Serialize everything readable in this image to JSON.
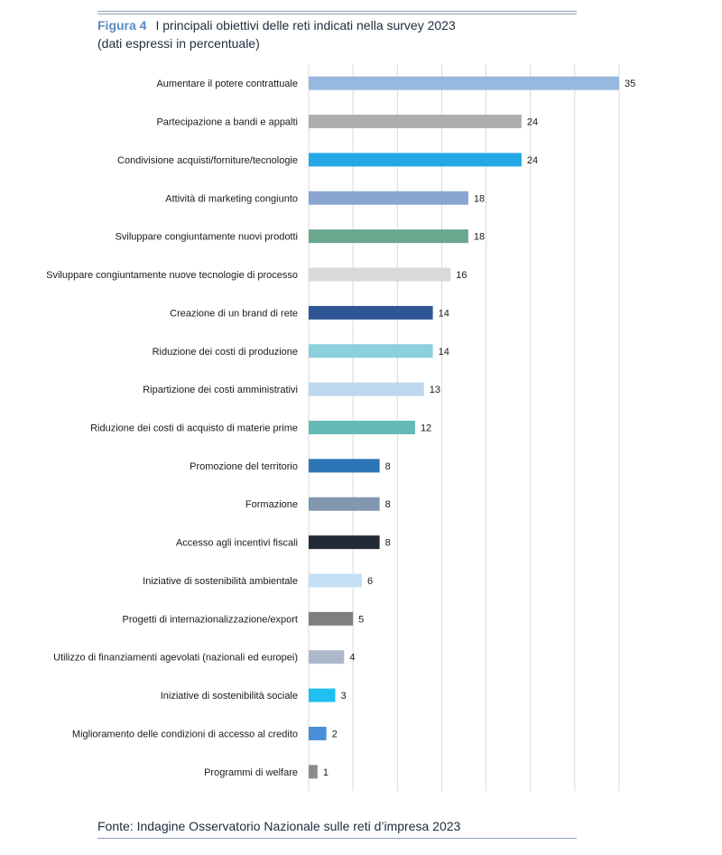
{
  "figure": {
    "label": "Figura 4",
    "title": "I principali obiettivi delle reti indicati nella survey 2023",
    "subtitle": "(dati espressi in percentuale)",
    "source": "Fonte: Indagine Osservatorio Nazionale sulle reti d’impresa 2023"
  },
  "chart_data": {
    "type": "bar",
    "orientation": "horizontal",
    "title": "I principali obiettivi delle reti indicati nella survey 2023",
    "subtitle": "(dati espressi in percentuale)",
    "xlabel": "",
    "ylabel": "",
    "xlim": [
      0,
      35
    ],
    "grid": true,
    "legend": "none",
    "categories": [
      "Aumentare il potere contrattuale",
      "Partecipazione a bandi e appalti",
      "Condivisione acquisti/forniture/tecnologie",
      "Attività di marketing congiunto",
      "Sviluppare congiuntamente nuovi prodotti",
      "Sviluppare congiuntamente nuove tecnologie di processo",
      "Creazione di un brand di rete",
      "Riduzione dei costi di produzione",
      "Ripartizione dei costi amministrativi",
      "Riduzione dei costi di acquisto di materie prime",
      "Promozione del territorio",
      "Formazione",
      "Accesso agli incentivi fiscali",
      "Iniziative di sostenibilità ambientale",
      "Progetti di internazionalizzazione/export",
      "Utilizzo di finanziamenti agevolati (nazionali ed europei)",
      "Iniziative di sostenibilità sociale",
      "Miglioramento delle condizioni di accesso al credito",
      "Programmi di welfare"
    ],
    "values": [
      35,
      24,
      24,
      18,
      18,
      16,
      14,
      14,
      13,
      12,
      8,
      8,
      8,
      6,
      5,
      4,
      3,
      2,
      1
    ],
    "colors": [
      "#96b9df",
      "#aeaeae",
      "#27a8e6",
      "#8aa5d2",
      "#69a88c",
      "#d9d9d9",
      "#2f5597",
      "#8bd0dc",
      "#bdd7ee",
      "#63b9b3",
      "#2e75b6",
      "#8497b0",
      "#222a35",
      "#c5e0f5",
      "#7f7f7f",
      "#adb9ca",
      "#1ec0f0",
      "#4a8fd8",
      "#8c8c8c"
    ]
  }
}
